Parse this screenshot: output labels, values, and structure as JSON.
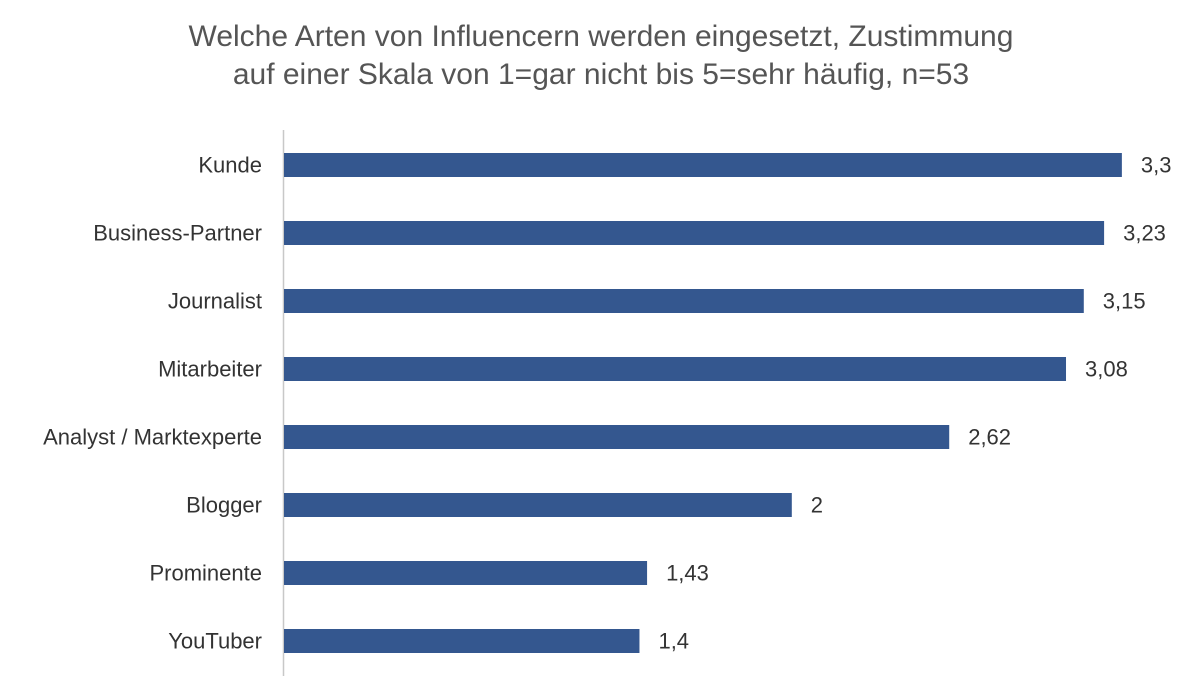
{
  "chart_data": {
    "type": "bar",
    "orientation": "horizontal",
    "title_lines": [
      "Welche Arten von Influencern werden eingesetzt, Zustimmung",
      "auf einer Skala von 1=gar nicht bis 5=sehr häufig, n=53"
    ],
    "categories": [
      "Kunde",
      "Business-Partner",
      "Journalist",
      "Mitarbeiter",
      "Analyst / Marktexperte",
      "Blogger",
      "Prominente",
      "YouTuber"
    ],
    "values": [
      3.3,
      3.23,
      3.15,
      3.08,
      2.62,
      2,
      1.43,
      1.4
    ],
    "value_labels": [
      "3,3",
      "3,23",
      "3,15",
      "3,08",
      "2,62",
      "2",
      "1,43",
      "1,4"
    ],
    "xlim": [
      0,
      3.3
    ],
    "grid": false,
    "legend": "none",
    "bar_color": "#34578f",
    "axis_color": "#c8c8c8",
    "text_color": "#333333",
    "title_color": "#555555"
  }
}
